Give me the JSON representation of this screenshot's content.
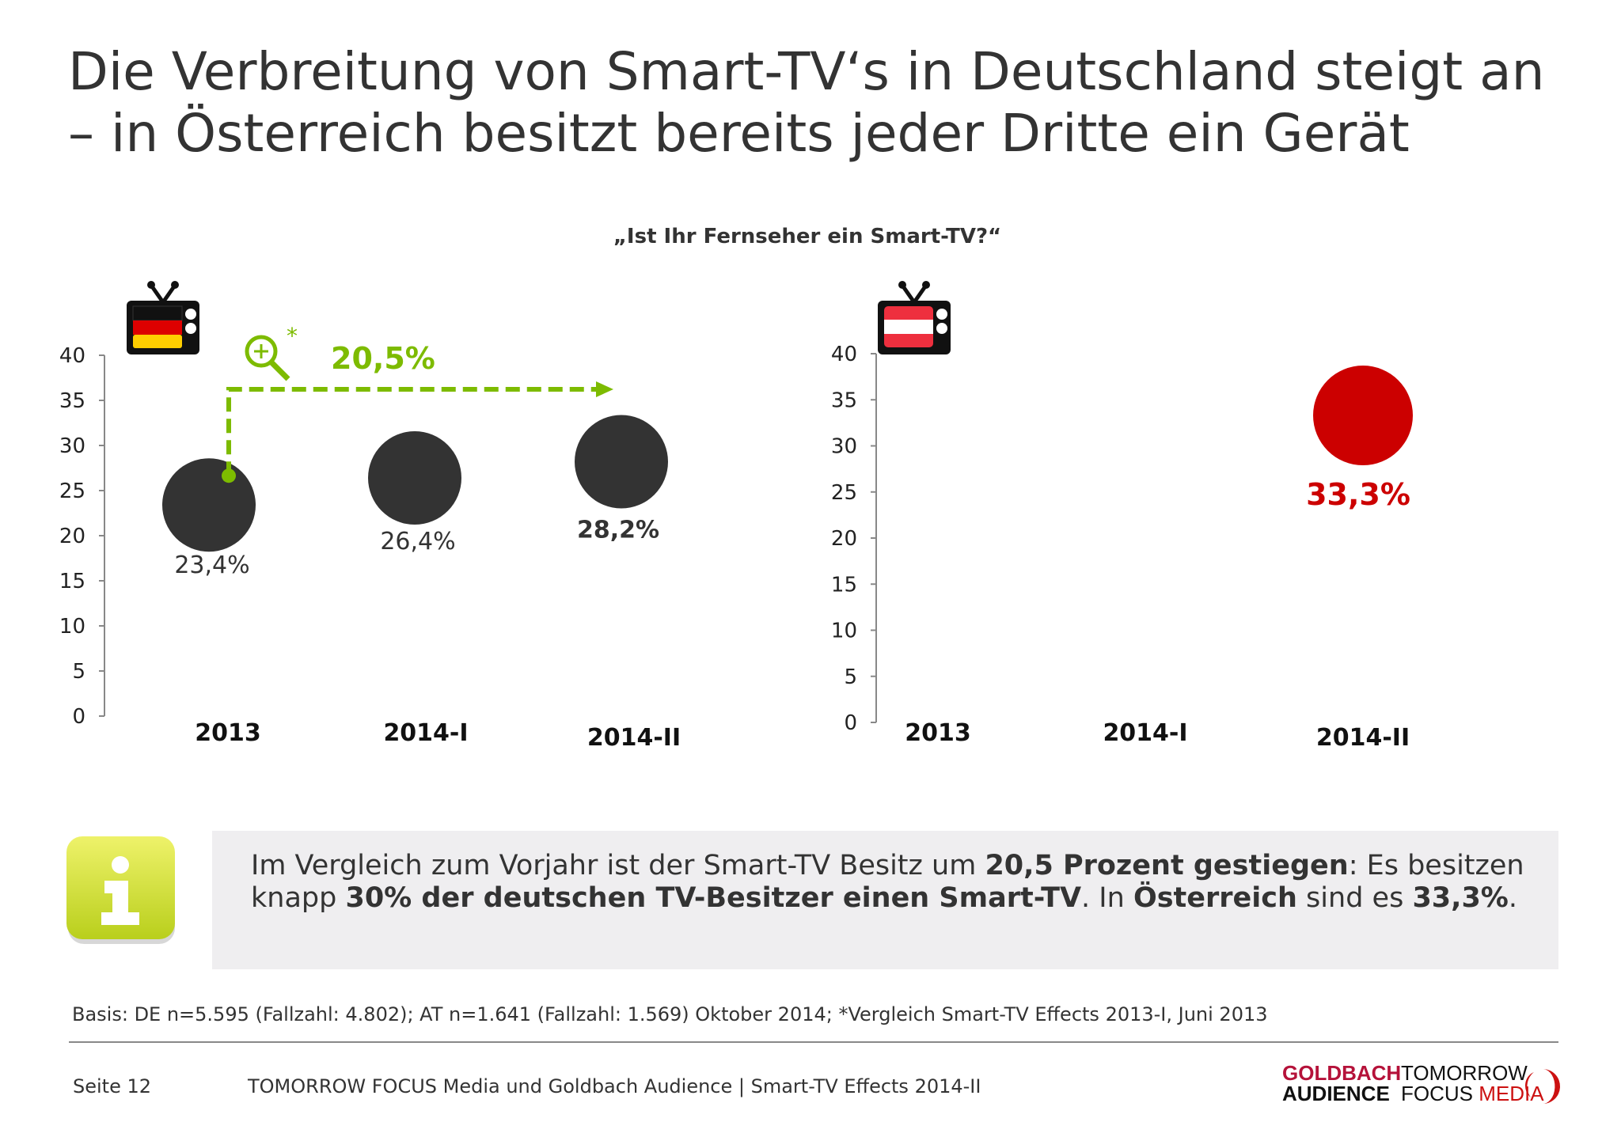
{
  "title": {
    "line1": "Die Verbreitung von Smart-TV‘s in Deutschland steigt an",
    "line2": "– in Österreich besitzt bereits jeder Dritte ein Gerät"
  },
  "subtitle": "„Ist Ihr Fernseher ein Smart-TV?“",
  "colors": {
    "de_bubble": "#333333",
    "at_bubble": "#cc0000",
    "growth": "#7dbb00",
    "text": "#333333"
  },
  "chart_data": [
    {
      "type": "scatter",
      "country_icon": "tv-germany-flag-icon",
      "categories": [
        "2013",
        "2014-I",
        "2014-II"
      ],
      "values": [
        23.4,
        26.4,
        28.2
      ],
      "labels": [
        "23,4%",
        "26,4%",
        "28,2%"
      ],
      "yticks": [
        "0",
        "5",
        "10",
        "15",
        "20",
        "25",
        "30",
        "35",
        "40"
      ],
      "ylim": [
        0,
        40
      ],
      "grid": false,
      "annotation": {
        "label": "20,5%",
        "asterisk": "*",
        "icon": "magnifier-plus-icon",
        "from": "2013",
        "to": "2014-II"
      }
    },
    {
      "type": "scatter",
      "country_icon": "tv-austria-flag-icon",
      "categories": [
        "2013",
        "2014-I",
        "2014-II"
      ],
      "values": [
        null,
        null,
        33.3
      ],
      "labels": [
        "",
        "",
        "33,3%"
      ],
      "yticks": [
        "0",
        "5",
        "10",
        "15",
        "20",
        "25",
        "30",
        "35",
        "40"
      ],
      "ylim": [
        0,
        40
      ],
      "grid": false
    }
  ],
  "info": {
    "icon": "info-icon",
    "t1": "Im Vergleich zum Vorjahr ist der Smart-TV Besitz um ",
    "b1": "20,5 Prozent gestiegen",
    "t2": ": Es besitzen knapp ",
    "b2": "30% der deutschen TV-Besitzer einen Smart-TV",
    "t3": ". In ",
    "b3": "Österreich",
    "t4": " sind es ",
    "b4": "33,3%",
    "t5": "."
  },
  "basis": "Basis: DE n=5.595 (Fallzahl: 4.802); AT n=1.641 (Fallzahl: 1.569) Oktober 2014; *Vergleich Smart-TV Effects 2013-I, Juni 2013",
  "footer": {
    "page": "Seite 12",
    "text": "TOMORROW FOCUS Media und Goldbach Audience | Smart-TV Effects 2014-II",
    "logo1": {
      "line1": "GOLDBACH",
      "line2": "AUDIENCE"
    },
    "logo2": {
      "line1": "TOMORROW",
      "line2a": "FOCUS",
      "line2b": "MEDIA"
    }
  }
}
